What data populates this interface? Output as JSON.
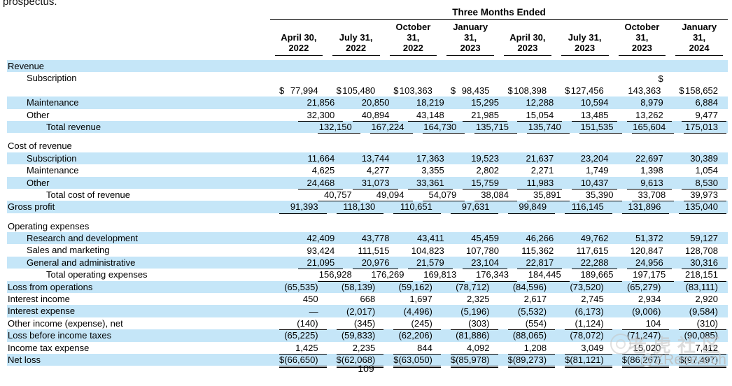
{
  "page": {
    "top_text": "prospectus.",
    "page_number": "109",
    "watermark": {
      "logo_icon": "tiger-circle-logo",
      "cjk_text": "老虎社区",
      "handle": "@ZResearch"
    },
    "colors": {
      "row_highlight": "#c5e6f8",
      "text": "#000000",
      "watermark": "#c6c6c6"
    }
  },
  "table": {
    "spanner": "Three Months Ended",
    "columns": [
      {
        "lines": [
          "April 30,",
          "2022"
        ]
      },
      {
        "lines": [
          "July 31,",
          "2022"
        ]
      },
      {
        "lines": [
          "October",
          "31,",
          "2022"
        ]
      },
      {
        "lines": [
          "January",
          "31,",
          "2023"
        ]
      },
      {
        "lines": [
          "April 30,",
          "2023"
        ]
      },
      {
        "lines": [
          "July 31,",
          "2023"
        ]
      },
      {
        "lines": [
          "October",
          "31,",
          "2023"
        ]
      },
      {
        "lines": [
          "January",
          "31,",
          "2024"
        ]
      }
    ],
    "rows": [
      {
        "label": "Revenue",
        "indent": 0,
        "shaded": true,
        "values": null,
        "underline": "none"
      },
      {
        "label": "Subscription",
        "indent": 1,
        "shaded": false,
        "values": [
          "",
          "",
          "",
          "",
          "",
          "",
          "$",
          ""
        ],
        "underline": "none"
      },
      {
        "label": "",
        "indent": 0,
        "shaded": false,
        "values": [
          "$ 77,994",
          "$ 105,480",
          "$ 103,363",
          "$ 98,435",
          "$ 108,398",
          "$ 127,456",
          "143,363",
          "$ 158,652"
        ],
        "underline": "none"
      },
      {
        "label": "Maintenance",
        "indent": 1,
        "shaded": true,
        "values": [
          "21,856",
          "20,850",
          "18,219",
          "15,295",
          "12,288",
          "10,594",
          "8,979",
          "6,884"
        ],
        "underline": "none"
      },
      {
        "label": "Other",
        "indent": 1,
        "shaded": false,
        "values": [
          "32,300",
          "40,894",
          "43,148",
          "21,985",
          "15,054",
          "13,485",
          "13,262",
          "9,477"
        ],
        "underline": "single"
      },
      {
        "label": "Total revenue",
        "indent": 2,
        "shaded": true,
        "values": [
          "132,150",
          "167,224",
          "164,730",
          "135,715",
          "135,740",
          "151,535",
          "165,604",
          "175,013"
        ],
        "underline": "single"
      },
      {
        "spacer": true
      },
      {
        "label": "Cost of revenue",
        "indent": 0,
        "shaded": false,
        "values": null,
        "underline": "none"
      },
      {
        "label": "Subscription",
        "indent": 1,
        "shaded": true,
        "values": [
          "11,664",
          "13,744",
          "17,363",
          "19,523",
          "21,637",
          "23,204",
          "22,697",
          "30,389"
        ],
        "underline": "none"
      },
      {
        "label": "Maintenance",
        "indent": 1,
        "shaded": false,
        "values": [
          "4,625",
          "4,277",
          "3,355",
          "2,802",
          "2,271",
          "1,749",
          "1,398",
          "1,054"
        ],
        "underline": "none"
      },
      {
        "label": "Other",
        "indent": 1,
        "shaded": true,
        "values": [
          "24,468",
          "31,073",
          "33,361",
          "15,759",
          "11,983",
          "10,437",
          "9,613",
          "8,530"
        ],
        "underline": "single"
      },
      {
        "label": "Total cost of revenue",
        "indent": 2,
        "shaded": false,
        "values": [
          "40,757",
          "49,094",
          "54,079",
          "38,084",
          "35,891",
          "35,390",
          "33,708",
          "39,973"
        ],
        "underline": "single"
      },
      {
        "label": "Gross profit",
        "indent": 0,
        "shaded": true,
        "values": [
          "91,393",
          "118,130",
          "110,651",
          "97,631",
          "99,849",
          "116,145",
          "131,896",
          "135,040"
        ],
        "underline": "single"
      },
      {
        "spacer": true
      },
      {
        "label": "Operating expenses",
        "indent": 0,
        "shaded": false,
        "values": null,
        "underline": "none"
      },
      {
        "label": "Research and development",
        "indent": 1,
        "shaded": true,
        "values": [
          "42,409",
          "43,778",
          "43,411",
          "45,459",
          "46,266",
          "49,762",
          "51,372",
          "59,127"
        ],
        "underline": "none"
      },
      {
        "label": "Sales and marketing",
        "indent": 1,
        "shaded": false,
        "values": [
          "93,424",
          "111,515",
          "104,823",
          "107,780",
          "115,362",
          "117,615",
          "120,847",
          "128,708"
        ],
        "underline": "none"
      },
      {
        "label": "General and administrative",
        "indent": 1,
        "shaded": true,
        "values": [
          "21,095",
          "20,976",
          "21,579",
          "23,104",
          "22,817",
          "22,288",
          "24,956",
          "30,316"
        ],
        "underline": "single"
      },
      {
        "label": "Total operating expenses",
        "indent": 2,
        "shaded": false,
        "values": [
          "156,928",
          "176,269",
          "169,813",
          "176,343",
          "184,445",
          "189,665",
          "197,175",
          "218,151"
        ],
        "underline": "single"
      },
      {
        "label": "Loss from operations",
        "indent": 0,
        "shaded": true,
        "values": [
          "(65,535)",
          "(58,139)",
          "(59,162)",
          "(78,712)",
          "(84,596)",
          "(73,520)",
          "(65,279)",
          "(83,111)"
        ],
        "underline": "none"
      },
      {
        "label": "Interest income",
        "indent": 0,
        "shaded": false,
        "values": [
          "450",
          "668",
          "1,697",
          "2,325",
          "2,617",
          "2,745",
          "2,934",
          "2,920"
        ],
        "underline": "none"
      },
      {
        "label": "Interest expense",
        "indent": 0,
        "shaded": true,
        "values": [
          "—",
          "(2,017)",
          "(4,496)",
          "(5,196)",
          "(5,532)",
          "(6,173)",
          "(9,006)",
          "(9,584)"
        ],
        "underline": "none"
      },
      {
        "label": "Other income (expense), net",
        "indent": 0,
        "shaded": false,
        "values": [
          "(140)",
          "(345)",
          "(245)",
          "(303)",
          "(554)",
          "(1,124)",
          "104",
          "(310)"
        ],
        "underline": "single"
      },
      {
        "label": "Loss before income taxes",
        "indent": 0,
        "shaded": true,
        "values": [
          "(65,225)",
          "(59,833)",
          "(62,206)",
          "(81,886)",
          "(88,065)",
          "(78,072)",
          "(71,247)",
          "(90,085)"
        ],
        "underline": "none"
      },
      {
        "label": "Income tax expense",
        "indent": 0,
        "shaded": false,
        "values": [
          "1,425",
          "2,235",
          "844",
          "4,092",
          "1,208",
          "3,049",
          "15,020",
          "7,412"
        ],
        "underline": "single"
      },
      {
        "label": "Net loss",
        "indent": 0,
        "shaded": true,
        "values": [
          "$ (66,650)",
          "$ (62,068)",
          "$ (63,050)",
          "$ (85,978)",
          "$ (89,273)",
          "$ (81,121)",
          "$ (86,267)",
          "$ (97,497)"
        ],
        "underline": "double"
      }
    ]
  }
}
